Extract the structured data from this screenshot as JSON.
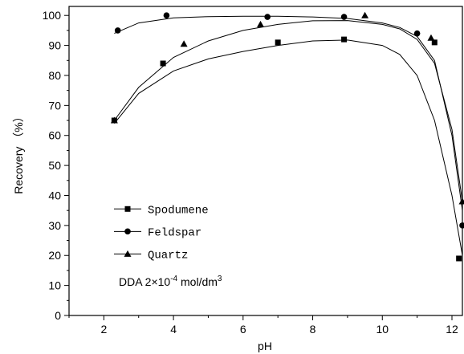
{
  "chart_data": {
    "type": "scatter",
    "xlabel": "pH",
    "ylabel": "Recovery （%）",
    "xlim": [
      1,
      12.3
    ],
    "ylim": [
      0,
      103
    ],
    "x_ticks": [
      2,
      4,
      6,
      8,
      10,
      12
    ],
    "y_ticks": [
      0,
      10,
      20,
      30,
      40,
      50,
      60,
      70,
      80,
      90,
      100
    ],
    "grid": false,
    "legend_position": "left",
    "annotation": {
      "prefix": "DDA 2×10",
      "exponent": "-4",
      "unit": " mol/dm",
      "unit_exponent": "3"
    },
    "series": [
      {
        "name": "Spodumene",
        "marker": "square",
        "points": [
          [
            2.3,
            65
          ],
          [
            3.7,
            84
          ],
          [
            7.0,
            91
          ],
          [
            8.9,
            92
          ],
          [
            11.5,
            91
          ],
          [
            12.2,
            19
          ]
        ],
        "fit": [
          [
            2.3,
            64
          ],
          [
            3.0,
            74
          ],
          [
            4.0,
            81.5
          ],
          [
            5.0,
            85.5
          ],
          [
            6.0,
            88
          ],
          [
            7.0,
            90
          ],
          [
            8.0,
            91.5
          ],
          [
            9.0,
            91.8
          ],
          [
            10.0,
            90
          ],
          [
            10.5,
            87
          ],
          [
            11.0,
            80
          ],
          [
            11.5,
            65
          ],
          [
            12.0,
            40
          ],
          [
            12.3,
            20
          ]
        ]
      },
      {
        "name": "Feldspar",
        "marker": "circle",
        "points": [
          [
            2.4,
            95
          ],
          [
            3.8,
            100
          ],
          [
            6.7,
            99.5
          ],
          [
            8.9,
            99.5
          ],
          [
            11.0,
            94
          ],
          [
            12.3,
            30
          ]
        ],
        "fit": [
          [
            2.3,
            94
          ],
          [
            3.0,
            97.5
          ],
          [
            4.0,
            99.2
          ],
          [
            5.0,
            99.6
          ],
          [
            6.0,
            99.7
          ],
          [
            7.0,
            99.7
          ],
          [
            8.0,
            99.5
          ],
          [
            9.0,
            99.0
          ],
          [
            10.0,
            97.5
          ],
          [
            10.5,
            96
          ],
          [
            11.0,
            93
          ],
          [
            11.5,
            85
          ],
          [
            12.0,
            60
          ],
          [
            12.3,
            35
          ]
        ]
      },
      {
        "name": "Quartz",
        "marker": "triangle",
        "points": [
          [
            2.3,
            65
          ],
          [
            4.3,
            90.5
          ],
          [
            6.5,
            97
          ],
          [
            9.5,
            100
          ],
          [
            11.4,
            92.5
          ],
          [
            12.3,
            38
          ]
        ],
        "fit": [
          [
            2.3,
            65
          ],
          [
            3.0,
            76
          ],
          [
            4.0,
            86
          ],
          [
            5.0,
            91.5
          ],
          [
            6.0,
            95
          ],
          [
            7.0,
            97
          ],
          [
            8.0,
            98.2
          ],
          [
            9.0,
            98.3
          ],
          [
            10.0,
            97
          ],
          [
            10.5,
            95.5
          ],
          [
            11.0,
            92
          ],
          [
            11.5,
            84
          ],
          [
            12.0,
            62
          ],
          [
            12.3,
            38
          ]
        ]
      }
    ]
  }
}
